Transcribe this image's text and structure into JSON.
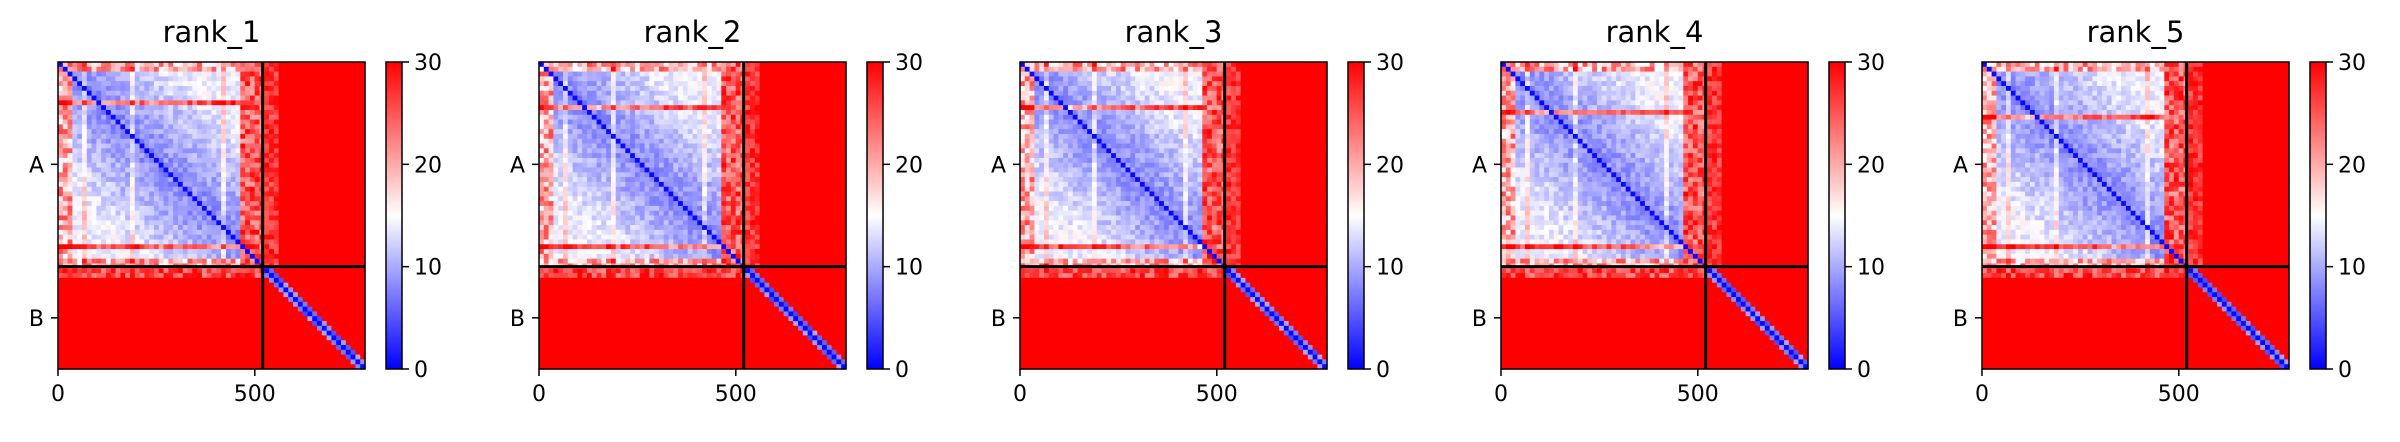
{
  "chart_data": {
    "type": "heatmap",
    "title": "",
    "xlabel": "",
    "ylabel": "",
    "colormap": {
      "name": "bwr",
      "low": "#0000ff",
      "mid": "#ffffff",
      "high": "#ff0000"
    },
    "value_range": [
      0,
      30
    ],
    "colorbar_ticks": [
      0,
      10,
      20,
      30
    ],
    "residue_range": [
      0,
      780
    ],
    "x_ticks": [
      0,
      500
    ],
    "chain_boundary": 520,
    "chains": [
      {
        "label": "A",
        "start": 0,
        "end": 520
      },
      {
        "label": "B",
        "start": 520,
        "end": 780
      }
    ],
    "panels": [
      {
        "title": "rank_1"
      },
      {
        "title": "rank_2"
      },
      {
        "title": "rank_3"
      },
      {
        "title": "rank_4"
      },
      {
        "title": "rank_5"
      }
    ]
  }
}
